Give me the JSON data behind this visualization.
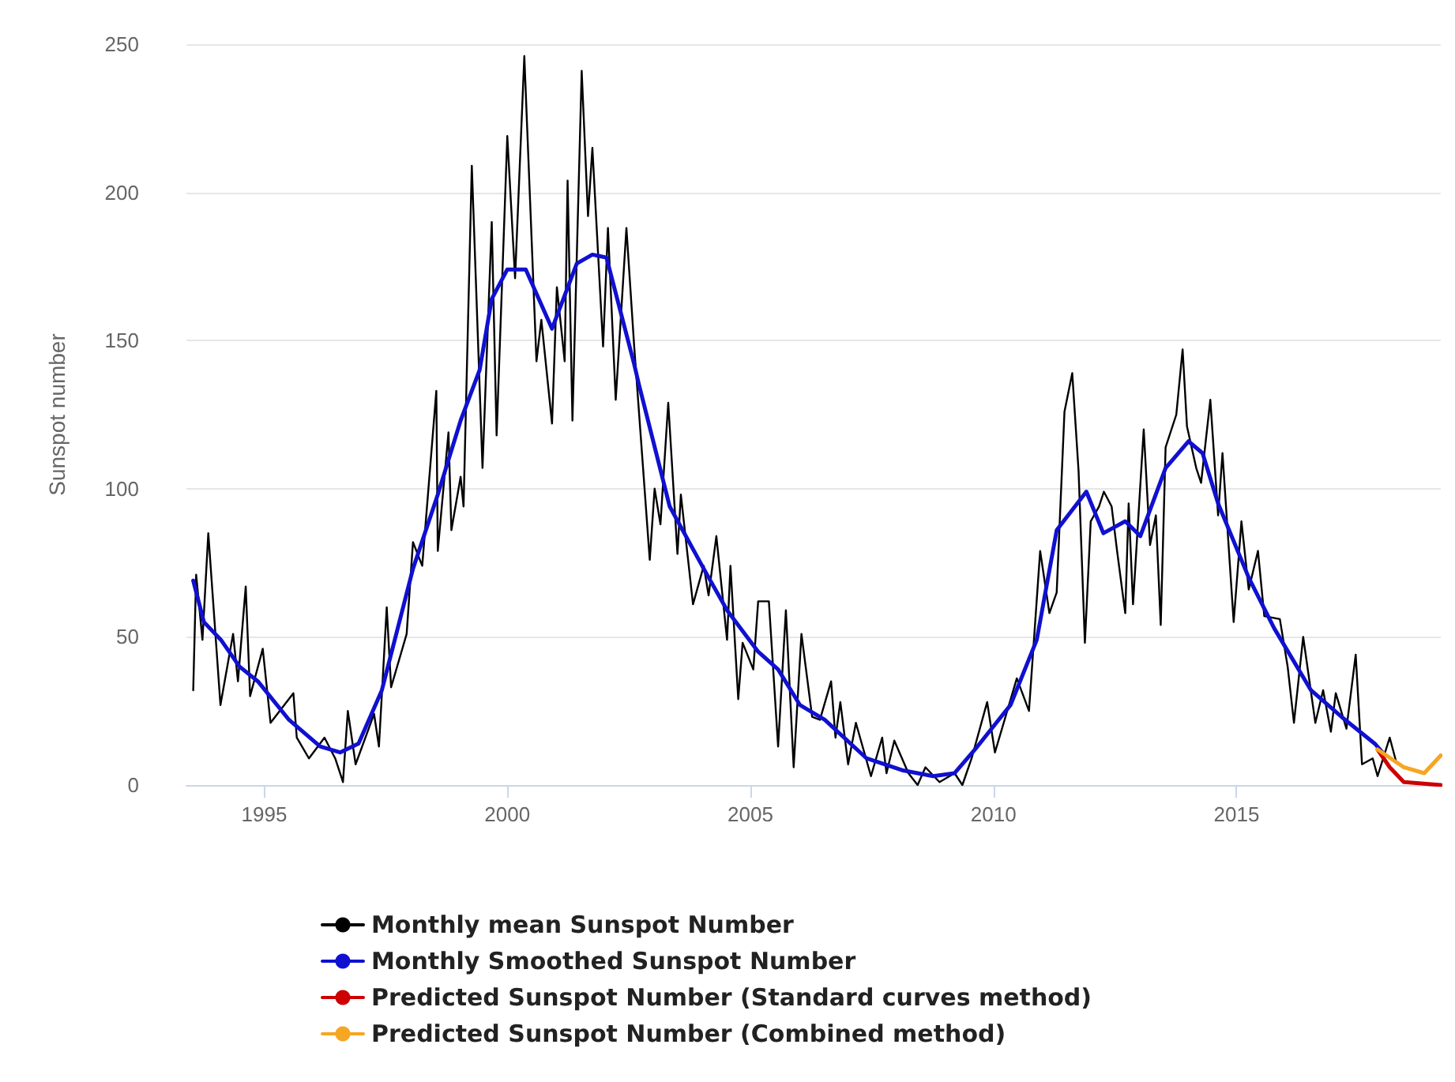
{
  "chart_data": {
    "type": "line",
    "ylabel": "Sunspot number",
    "xlim": [
      1993.4,
      2019.2
    ],
    "xticks": [
      1995,
      2000,
      2005,
      2010,
      2015
    ],
    "ylim": [
      0,
      250
    ],
    "yticks": [
      0,
      50,
      100,
      150,
      200,
      250
    ],
    "grid": "y",
    "legend": "bottom",
    "marker": "none",
    "series": [
      {
        "name": "Monthly mean Sunspot Number",
        "color": "#000000",
        "x": [
          1993.54,
          1993.6,
          1993.73,
          1993.85,
          1994.1,
          1994.36,
          1994.46,
          1994.62,
          1994.71,
          1994.97,
          1995.13,
          1995.6,
          1995.67,
          1995.92,
          1996.24,
          1996.46,
          1996.62,
          1996.72,
          1996.88,
          1997.26,
          1997.36,
          1997.52,
          1997.61,
          1997.93,
          1998.06,
          1998.25,
          1998.54,
          1998.57,
          1998.79,
          1998.85,
          1999.04,
          1999.1,
          1999.27,
          1999.49,
          1999.68,
          1999.78,
          2000.0,
          2000.16,
          2000.35,
          2000.6,
          2000.7,
          2000.92,
          2001.02,
          2001.18,
          2001.24,
          2001.34,
          2001.53,
          2001.66,
          2001.75,
          2001.97,
          2002.07,
          2002.23,
          2002.45,
          2002.61,
          2002.93,
          2003.03,
          2003.15,
          2003.31,
          2003.5,
          2003.57,
          2003.82,
          2004.04,
          2004.14,
          2004.3,
          2004.52,
          2004.59,
          2004.75,
          2004.84,
          2005.06,
          2005.16,
          2005.38,
          2005.57,
          2005.73,
          2005.89,
          2006.05,
          2006.27,
          2006.43,
          2006.66,
          2006.75,
          2006.85,
          2007.01,
          2007.17,
          2007.48,
          2007.71,
          2007.8,
          2007.96,
          2008.25,
          2008.44,
          2008.6,
          2008.89,
          2009.2,
          2009.36,
          2009.55,
          2009.87,
          2010.03,
          2010.48,
          2010.73,
          2010.96,
          2011.15,
          2011.3,
          2011.46,
          2011.62,
          2011.75,
          2011.88,
          2012.0,
          2012.17,
          2012.27,
          2012.43,
          2012.55,
          2012.71,
          2012.78,
          2012.87,
          2013.09,
          2013.22,
          2013.34,
          2013.44,
          2013.54,
          2013.76,
          2013.89,
          2013.98,
          2014.17,
          2014.27,
          2014.46,
          2014.62,
          2014.71,
          2014.94,
          2015.1,
          2015.25,
          2015.44,
          2015.57,
          2015.89,
          2016.05,
          2016.18,
          2016.37,
          2016.62,
          2016.78,
          2016.94,
          2017.04,
          2017.26,
          2017.45,
          2017.58,
          2017.8,
          2017.9,
          2018.15,
          2018.28
        ],
        "values": [
          32,
          71,
          49,
          85,
          27,
          51,
          35,
          67,
          30,
          46,
          21,
          31,
          16,
          9,
          16,
          9,
          1,
          25,
          7,
          24,
          13,
          60,
          33,
          51,
          82,
          74,
          133,
          79,
          119,
          86,
          104,
          94,
          209,
          107,
          190,
          118,
          219,
          171,
          246,
          143,
          157,
          122,
          168,
          143,
          204,
          123,
          241,
          192,
          215,
          148,
          188,
          130,
          188,
          148,
          76,
          100,
          88,
          129,
          78,
          98,
          61,
          74,
          64,
          84,
          49,
          74,
          29,
          48,
          39,
          62,
          62,
          13,
          59,
          6,
          51,
          23,
          22,
          35,
          16,
          28,
          7,
          21,
          3,
          16,
          4,
          15,
          4,
          0,
          6,
          1,
          4,
          0,
          9,
          28,
          11,
          36,
          25,
          79,
          58,
          65,
          126,
          139,
          106,
          48,
          89,
          94,
          99,
          94,
          78,
          58,
          95,
          61,
          120,
          81,
          91,
          54,
          114,
          125,
          147,
          121,
          107,
          102,
          130,
          91,
          112,
          55,
          89,
          66,
          79,
          57,
          56,
          40,
          21,
          50,
          21,
          32,
          18,
          31,
          19,
          44,
          7,
          9,
          3,
          16,
          8
        ]
      },
      {
        "name": "Monthly Smoothed Sunspot Number",
        "color": "#1010d0",
        "x": [
          1993.54,
          1993.76,
          1994.11,
          1994.49,
          1994.87,
          1995.51,
          1996.15,
          1996.56,
          1996.94,
          1997.42,
          1998.06,
          1998.57,
          1999.04,
          1999.43,
          1999.68,
          2000.0,
          2000.38,
          2000.92,
          2001.43,
          2001.75,
          2002.04,
          2002.61,
          2002.71,
          2003.34,
          2004.04,
          2004.52,
          2005.16,
          2005.57,
          2006.02,
          2006.53,
          2007.39,
          2008.12,
          2008.76,
          2009.2,
          2009.62,
          2010.35,
          2010.89,
          2011.3,
          2011.91,
          2012.26,
          2012.71,
          2013.02,
          2013.54,
          2014.01,
          2014.3,
          2014.62,
          2015.25,
          2015.77,
          2016.53,
          2017.16,
          2017.84,
          2018.0
        ],
        "values": [
          69,
          55,
          49,
          40,
          35,
          22,
          13,
          11,
          14,
          32,
          73,
          98,
          123,
          140,
          164,
          174,
          174,
          154,
          176,
          179,
          178,
          142,
          135,
          94,
          73,
          59,
          45,
          39,
          27,
          22,
          9,
          5,
          3,
          4,
          12,
          27,
          49,
          86,
          99,
          85,
          89,
          84,
          107,
          116,
          112,
          95,
          70,
          53,
          32,
          23,
          14,
          11
        ]
      },
      {
        "name": "Predicted Sunspot Number (Standard curves method)",
        "color": "#cc0000",
        "x": [
          2017.9,
          2018.15,
          2018.44,
          2019.2
        ],
        "values": [
          12,
          6,
          1,
          0
        ]
      },
      {
        "name": "Predicted Sunspot Number (Combined method)",
        "color": "#f5a623",
        "x": [
          2017.9,
          2018.44,
          2018.86,
          2019.2
        ],
        "values": [
          12,
          6,
          4,
          10
        ]
      }
    ]
  }
}
